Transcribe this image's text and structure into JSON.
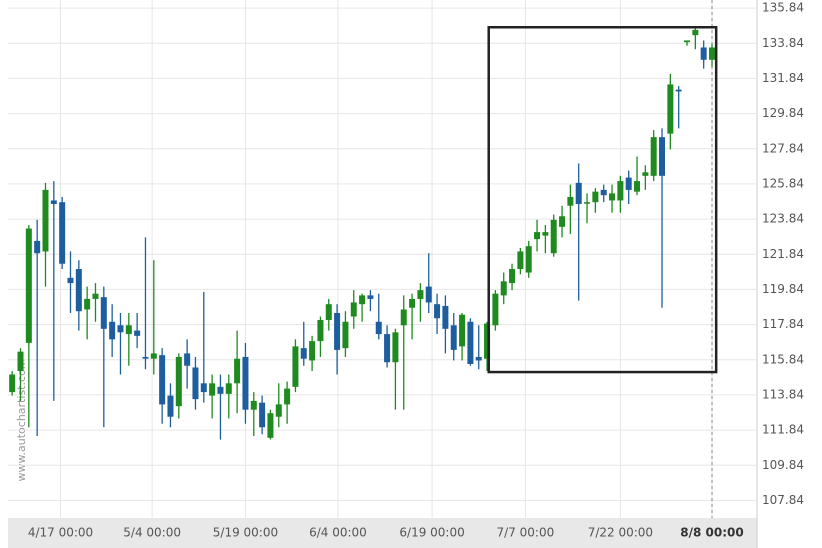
{
  "chart_data": {
    "type": "candlestick",
    "watermark": "www.autochartist.com",
    "up_color": "#1f8a1f",
    "down_color": "#1f5e9e",
    "x": [
      0,
      1,
      2,
      3,
      4,
      5,
      6,
      7,
      8,
      9,
      10,
      11,
      12,
      13,
      14,
      15,
      16,
      17,
      18,
      19,
      20,
      21,
      22,
      23,
      24,
      25,
      26,
      27,
      28,
      29,
      30,
      31,
      32,
      33,
      34,
      35,
      36,
      37,
      38,
      39,
      40,
      41,
      42,
      43,
      44,
      45,
      46,
      47,
      48,
      49,
      50,
      51,
      52,
      53,
      54,
      55,
      56,
      57,
      58,
      59,
      60,
      61,
      62,
      63,
      64,
      65,
      66,
      67,
      68,
      69,
      70,
      71,
      72,
      73,
      74,
      75,
      76,
      77,
      78,
      79,
      80,
      81,
      82,
      83,
      84
    ],
    "open": [
      114.0,
      115.2,
      116.8,
      122.6,
      122.0,
      124.9,
      124.8,
      120.5,
      121.0,
      118.7,
      119.3,
      119.4,
      118.0,
      117.8,
      117.3,
      117.5,
      116.0,
      115.9,
      116.1,
      113.8,
      113.2,
      116.2,
      115.4,
      114.5,
      113.8,
      114.3,
      113.9,
      114.5,
      116.0,
      113.0,
      113.4,
      111.4,
      112.6,
      113.3,
      114.3,
      116.5,
      115.8,
      116.9,
      118.1,
      118.5,
      116.5,
      118.3,
      119.0,
      119.5,
      118.0,
      117.3,
      115.7,
      117.8,
      118.8,
      119.3,
      120.0,
      119.0,
      118.9,
      117.8,
      116.6,
      118.0,
      116.0,
      115.9,
      117.8,
      119.5,
      120.2,
      121.0,
      120.8,
      122.7,
      122.9,
      121.9,
      123.4,
      124.6,
      125.9,
      124.8,
      124.8,
      125.5,
      124.9,
      124.9,
      126.2,
      125.4,
      126.3,
      126.3,
      128.5,
      128.7,
      131.2,
      133.9,
      134.3,
      133.6,
      132.9
    ],
    "high": [
      115.2,
      116.5,
      123.5,
      123.8,
      125.9,
      126.0,
      125.1,
      122.0,
      121.5,
      120.0,
      120.2,
      120.0,
      119.0,
      118.5,
      118.5,
      118.5,
      122.8,
      121.5,
      116.5,
      114.5,
      116.2,
      117.0,
      116.0,
      119.7,
      115.0,
      115.0,
      115.0,
      117.5,
      116.8,
      114.0,
      113.8,
      113.0,
      114.5,
      114.6,
      117.0,
      118.0,
      117.2,
      118.3,
      119.3,
      119.0,
      118.6,
      119.8,
      119.6,
      119.8,
      119.6,
      117.8,
      117.6,
      119.5,
      119.6,
      120.2,
      121.9,
      119.6,
      119.5,
      118.5,
      118.5,
      118.2,
      117.8,
      118.0,
      119.8,
      120.8,
      121.3,
      122.2,
      122.6,
      123.8,
      123.5,
      124.1,
      124.6,
      125.8,
      127.0,
      125.3,
      125.6,
      125.8,
      125.8,
      126.3,
      126.6,
      127.4,
      126.9,
      128.9,
      129.0,
      132.1,
      131.4,
      134.0,
      134.7,
      134.0,
      133.8
    ],
    "low": [
      113.8,
      113.5,
      112.0,
      111.5,
      120.0,
      113.5,
      121.0,
      118.5,
      117.5,
      117.0,
      118.0,
      112.0,
      116.0,
      115.0,
      115.5,
      116.5,
      115.3,
      115.0,
      112.2,
      112.0,
      112.5,
      114.2,
      113.0,
      113.4,
      112.5,
      111.3,
      112.5,
      112.8,
      112.2,
      111.5,
      111.6,
      111.3,
      112.0,
      112.2,
      114.0,
      115.5,
      115.2,
      116.0,
      117.5,
      115.0,
      116.0,
      117.6,
      118.0,
      118.6,
      117.0,
      115.4,
      113.0,
      113.0,
      117.0,
      118.0,
      118.5,
      117.3,
      116.2,
      115.8,
      115.8,
      115.5,
      115.3,
      115.2,
      117.5,
      119.0,
      119.8,
      120.7,
      120.5,
      122.0,
      121.9,
      121.7,
      122.8,
      123.0,
      119.2,
      123.6,
      124.2,
      124.8,
      124.2,
      124.2,
      124.7,
      125.2,
      125.5,
      126.0,
      118.8,
      127.8,
      129.0,
      133.7,
      133.5,
      132.4,
      132.5
    ],
    "close": [
      115.0,
      116.3,
      123.3,
      121.9,
      125.5,
      124.7,
      121.3,
      120.2,
      118.6,
      119.3,
      119.6,
      117.6,
      117.0,
      117.4,
      117.8,
      117.2,
      115.9,
      116.2,
      113.3,
      112.6,
      116.0,
      115.5,
      113.6,
      114.0,
      114.5,
      113.9,
      114.5,
      115.9,
      113.0,
      113.5,
      112.0,
      112.8,
      113.3,
      114.2,
      116.6,
      115.9,
      116.9,
      118.1,
      119.0,
      116.4,
      118.0,
      119.1,
      119.5,
      119.3,
      117.3,
      115.7,
      117.4,
      118.7,
      119.3,
      119.8,
      119.1,
      118.2,
      117.6,
      116.4,
      118.4,
      115.6,
      115.8,
      117.9,
      119.6,
      120.3,
      121.0,
      122.0,
      122.3,
      123.1,
      123.1,
      123.8,
      124.0,
      125.1,
      124.7,
      124.8,
      125.4,
      125.2,
      125.3,
      126.0,
      125.5,
      126.0,
      126.5,
      128.5,
      126.3,
      131.5,
      131.1,
      134.0,
      134.6,
      132.9,
      133.6
    ],
    "xlim": [
      -0.5,
      89.4
    ],
    "ylim": [
      106.84,
      136.3
    ],
    "yticks": [
      107.84,
      109.84,
      111.84,
      113.84,
      115.84,
      117.84,
      119.84,
      121.84,
      123.84,
      125.84,
      127.84,
      129.84,
      131.84,
      133.84,
      135.84
    ],
    "xticks": [
      {
        "value": 5.8,
        "label": "4/17 00:00"
      },
      {
        "value": 16.8,
        "label": "5/4 00:00"
      },
      {
        "value": 28,
        "label": "5/19 00:00"
      },
      {
        "value": 39.1,
        "label": "6/4 00:00"
      },
      {
        "value": 50.4,
        "label": "6/19 00:00"
      },
      {
        "value": 61.6,
        "label": "7/7 00:00"
      },
      {
        "value": 73,
        "label": "7/22 00:00"
      },
      {
        "value": 84,
        "label": "8/8 00:00"
      }
    ],
    "current_x": 84,
    "pattern_box": {
      "x": [
        57.2,
        84.5
      ],
      "y": [
        115.14,
        134.75
      ]
    },
    "grid": true
  }
}
